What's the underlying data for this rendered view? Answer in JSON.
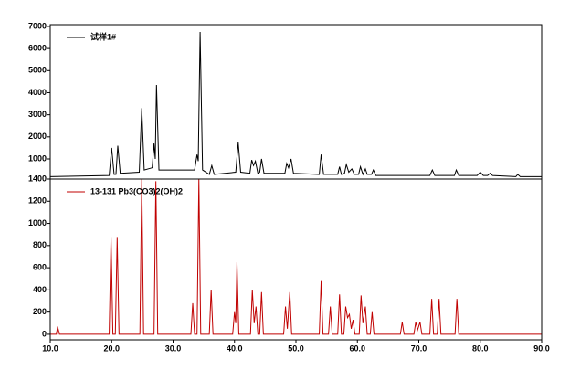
{
  "chart_data": [
    {
      "type": "line",
      "xlim": [
        10,
        90
      ],
      "ylim": [
        90,
        7080
      ],
      "yticks": [
        1000,
        2000,
        3000,
        4000,
        5000,
        6000,
        7000
      ],
      "legend": "upper left",
      "series": [
        {
          "name": "试样1#",
          "color": "#000000",
          "x": [
            10,
            19.6,
            20.0,
            20.4,
            20.7,
            21.0,
            21.4,
            24.5,
            24.9,
            25.3,
            26.6,
            26.9,
            27.1,
            27.3,
            27.7,
            33.5,
            33.9,
            34.1,
            34.4,
            34.8,
            35.9,
            36.3,
            36.7,
            40.2,
            40.6,
            41.0,
            42.5,
            42.8,
            43.1,
            43.4,
            43.8,
            44.1,
            44.4,
            44.8,
            48.2,
            48.5,
            48.8,
            49.2,
            49.6,
            53.8,
            54.1,
            54.5,
            56.8,
            57.1,
            57.4,
            57.9,
            58.2,
            58.6,
            59.1,
            59.5,
            60.2,
            60.5,
            60.9,
            61.3,
            61.6,
            62.3,
            62.6,
            63,
            71.8,
            72.2,
            72.6,
            75.8,
            76.1,
            76.5,
            79.5,
            80,
            80.5,
            81.2,
            81.6,
            82,
            85.8,
            86.1,
            86.5,
            90
          ],
          "values": [
            200,
            250,
            1500,
            300,
            300,
            1600,
            350,
            400,
            3300,
            500,
            600,
            1700,
            1000,
            4350,
            500,
            500,
            1200,
            900,
            6750,
            500,
            300,
            700,
            300,
            400,
            1750,
            400,
            350,
            950,
            700,
            900,
            350,
            400,
            1000,
            350,
            350,
            800,
            600,
            1000,
            350,
            300,
            1200,
            300,
            300,
            650,
            300,
            350,
            750,
            400,
            550,
            300,
            300,
            650,
            300,
            550,
            300,
            300,
            500,
            250,
            250,
            500,
            250,
            250,
            500,
            250,
            250,
            400,
            250,
            250,
            350,
            250,
            200,
            300,
            200,
            200
          ]
        }
      ]
    },
    {
      "type": "line",
      "xlim": [
        10,
        90
      ],
      "ylim": [
        -50,
        1400
      ],
      "yticks": [
        0,
        200,
        400,
        600,
        800,
        1000,
        1200,
        1400
      ],
      "legend": "upper left",
      "xticks": [
        {
          "value": 10,
          "label": "10.0"
        },
        {
          "value": 20,
          "label": "20.0"
        },
        {
          "value": 30,
          "label": "30.0"
        },
        {
          "value": 40,
          "label": "40.0"
        },
        {
          "value": 50,
          "label": "50.0"
        },
        {
          "value": 60,
          "label": "60.0"
        },
        {
          "value": 70,
          "label": "70.0"
        },
        {
          "value": 80,
          "label": "80.0"
        },
        {
          "value": 90,
          "label": "90.0"
        }
      ],
      "series": [
        {
          "name": "13-131 Pb3(CO3)2(OH)2",
          "color": "#c00000",
          "x": [
            10,
            11.0,
            11.2,
            11.5,
            19.6,
            19.9,
            20.2,
            20.6,
            20.9,
            21.2,
            24.6,
            24.9,
            25.2,
            26.9,
            27.2,
            27.5,
            32.9,
            33.2,
            33.5,
            33.9,
            34.2,
            34.5,
            35.9,
            36.2,
            36.5,
            39.7,
            40.0,
            40.2,
            40.4,
            40.7,
            42.6,
            42.9,
            43.2,
            43.5,
            43.8,
            44.1,
            44.4,
            44.7,
            48.0,
            48.3,
            48.6,
            49.0,
            49.3,
            53.8,
            54.1,
            54.4,
            55.3,
            55.6,
            55.9,
            56.8,
            57.1,
            57.4,
            57.8,
            58.1,
            58.4,
            58.7,
            59.0,
            59.3,
            59.6,
            60.3,
            60.6,
            60.9,
            61.3,
            61.6,
            62.1,
            62.4,
            62.7,
            67.0,
            67.3,
            67.6,
            69.2,
            69.5,
            69.8,
            70.2,
            70.5,
            71.8,
            72.1,
            72.4,
            73.0,
            73.3,
            73.6,
            75.9,
            76.2,
            76.5,
            90
          ],
          "values": [
            0,
            0,
            70,
            0,
            0,
            870,
            0,
            0,
            870,
            0,
            0,
            1400,
            0,
            0,
            1380,
            0,
            0,
            280,
            0,
            0,
            1400,
            0,
            0,
            400,
            0,
            0,
            200,
            100,
            650,
            0,
            0,
            400,
            100,
            250,
            0,
            0,
            380,
            0,
            0,
            250,
            50,
            380,
            0,
            0,
            480,
            0,
            0,
            250,
            0,
            0,
            360,
            0,
            0,
            250,
            150,
            180,
            50,
            130,
            0,
            0,
            350,
            100,
            250,
            0,
            0,
            200,
            0,
            0,
            110,
            0,
            0,
            110,
            40,
            110,
            0,
            0,
            320,
            0,
            0,
            320,
            0,
            0,
            320,
            0,
            0
          ]
        }
      ]
    }
  ]
}
